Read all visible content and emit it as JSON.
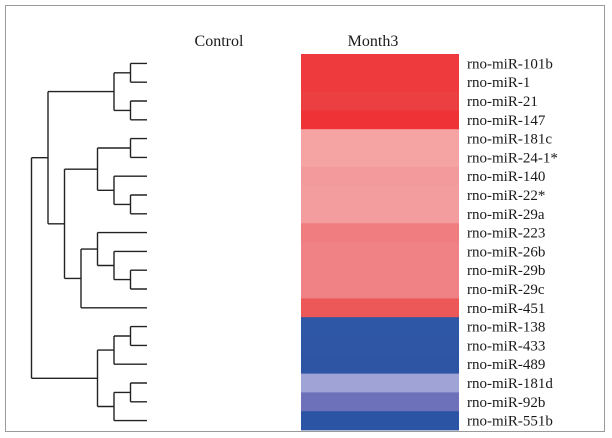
{
  "chart_data": {
    "type": "heatmap",
    "columns": [
      "Control",
      "Month3"
    ],
    "rows": [
      {
        "label": "rno-miR-101b",
        "color": "#ee3a3c"
      },
      {
        "label": "rno-miR-1",
        "color": "#ee3a3c"
      },
      {
        "label": "rno-miR-21",
        "color": "#ec3f41"
      },
      {
        "label": "rno-miR-147",
        "color": "#ee3236"
      },
      {
        "label": "rno-miR-181c",
        "color": "#f5a3a3"
      },
      {
        "label": "rno-miR-24-1*",
        "color": "#f5a3a3"
      },
      {
        "label": "rno-miR-140",
        "color": "#f39b9c"
      },
      {
        "label": "rno-miR-22*",
        "color": "#f49d9e"
      },
      {
        "label": "rno-miR-29a",
        "color": "#f49d9e"
      },
      {
        "label": "rno-miR-223",
        "color": "#f07e81"
      },
      {
        "label": "rno-miR-26b",
        "color": "#f08285"
      },
      {
        "label": "rno-miR-29b",
        "color": "#f08285"
      },
      {
        "label": "rno-miR-29c",
        "color": "#f08285"
      },
      {
        "label": "rno-miR-451",
        "color": "#ec5758"
      },
      {
        "label": "rno-miR-138",
        "color": "#2e57a5"
      },
      {
        "label": "rno-miR-433",
        "color": "#2e56a4"
      },
      {
        "label": "rno-miR-489",
        "color": "#2d55a3"
      },
      {
        "label": "rno-miR-181d",
        "color": "#9fa3d6"
      },
      {
        "label": "rno-miR-92b",
        "color": "#6d71b9"
      },
      {
        "label": "rno-miR-551b",
        "color": "#2b54a5"
      }
    ],
    "dendrogram": {
      "root": [
        [
          [
            [
              0,
              1
            ],
            [
              2,
              3
            ]
          ],
          [
            [
              [
                4,
                5
              ],
              [
                6,
                [
                  7,
                  8
                ]
              ]
            ],
            [
              [
                9,
                [
                  10,
                  [
                    11,
                    12
                  ]
                ]
              ],
              13
            ]
          ]
        ],
        [
          [
            [
              14,
              15
            ],
            16
          ],
          [
            [
              17,
              18
            ],
            19
          ]
        ]
      ]
    }
  }
}
